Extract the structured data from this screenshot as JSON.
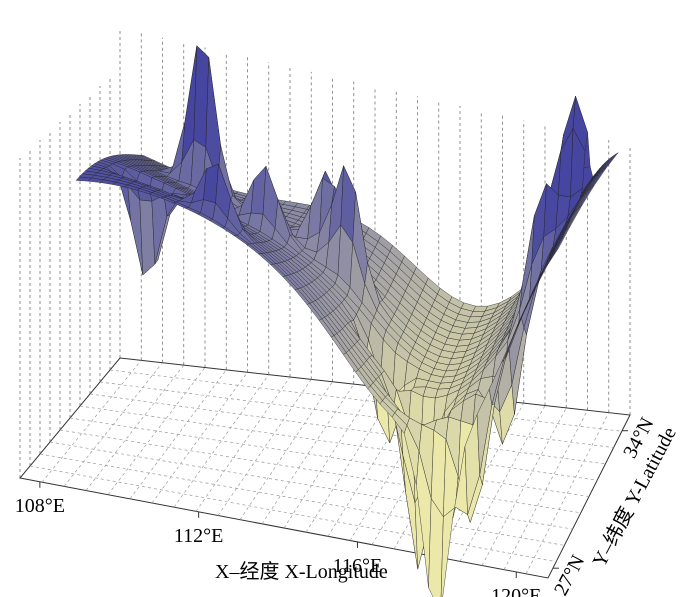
{
  "chart_data": {
    "type": "surface3d",
    "x_label": "X–经度  X-Longitude",
    "y_label": "Y–纬度  Y-Latitude",
    "xlim": [
      107.5,
      120.8
    ],
    "xticks": [
      {
        "value": 108,
        "label": "108°E"
      },
      {
        "value": 112,
        "label": "112°E"
      },
      {
        "value": 116,
        "label": "116°E"
      },
      {
        "value": 120,
        "label": "120°E"
      }
    ],
    "ylim": [
      26.5,
      34.8
    ],
    "yticks": [
      {
        "value": 27,
        "label": "27°N"
      },
      {
        "value": 34,
        "label": "34°N"
      }
    ],
    "grid": true
  }
}
